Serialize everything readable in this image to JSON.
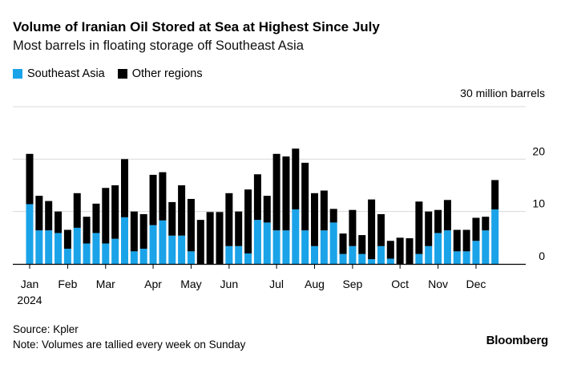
{
  "header": {
    "title": "Volume of Iranian Oil Stored at Sea at Highest Since July",
    "subtitle": "Most barrels in floating storage off Southeast Asia"
  },
  "colors": {
    "southeast_asia": "#1aa3e8",
    "other_regions": "#000000",
    "gridline": "#d9d9d9",
    "baseline": "#000000"
  },
  "chart_data": {
    "type": "bar",
    "stacked": true,
    "title": "Volume of Iranian Oil Stored at Sea at Highest Since July",
    "subtitle": "Most barrels in floating storage off Southeast Asia",
    "ylabel": "30 million barrels",
    "unit": "million barrels",
    "ylim": [
      0,
      30
    ],
    "yticks": [
      0,
      10,
      20,
      30
    ],
    "ytick_labels": [
      "0",
      "10",
      "20",
      "30 million barrels"
    ],
    "grid": true,
    "legend_position": "top-left",
    "x_tick_labels": [
      "Jan",
      "Feb",
      "Mar",
      "Apr",
      "May",
      "Jun",
      "Jul",
      "Aug",
      "Sep",
      "Oct",
      "Nov",
      "Dec"
    ],
    "x_tick_week_index": [
      0,
      4,
      8,
      13,
      17,
      21,
      26,
      30,
      34,
      39,
      43,
      47
    ],
    "x_year_label": "2024",
    "weeks": 50,
    "series": [
      {
        "name": "Southeast Asia",
        "values": [
          11.4,
          6.4,
          6.4,
          5.9,
          2.9,
          6.9,
          3.9,
          5.9,
          3.9,
          4.8,
          8.9,
          2.4,
          2.9,
          7.4,
          8.3,
          5.4,
          5.4,
          2.4,
          0,
          0,
          0,
          3.4,
          3.4,
          2.0,
          8.4,
          7.9,
          6.4,
          6.4,
          10.4,
          6.4,
          3.4,
          6.4,
          7.9,
          1.9,
          3.4,
          1.9,
          0.9,
          3.4,
          1.0,
          0,
          0,
          1.9,
          3.4,
          5.9,
          6.4,
          2.4,
          2.4,
          4.4,
          6.4,
          10.4
        ]
      },
      {
        "name": "Other regions",
        "values": [
          9.6,
          6.6,
          5.6,
          4.1,
          3.6,
          6.6,
          5.1,
          5.6,
          10.6,
          10.2,
          11.1,
          7.6,
          6.6,
          9.6,
          9.2,
          6.4,
          9.6,
          10.0,
          8.4,
          9.9,
          9.9,
          10.1,
          6.6,
          12.2,
          8.7,
          5.1,
          14.6,
          14.1,
          11.6,
          12.9,
          10.1,
          7.6,
          2.6,
          3.9,
          6.9,
          3.6,
          11.4,
          6.1,
          3.4,
          5.0,
          4.9,
          10.0,
          6.6,
          4.4,
          5.8,
          4.1,
          4.1,
          4.4,
          2.6,
          5.6
        ]
      }
    ]
  },
  "footer": {
    "source": "Source: Kpler",
    "note": "Note: Volumes are tallied every week on Sunday",
    "brand": "Bloomberg"
  }
}
